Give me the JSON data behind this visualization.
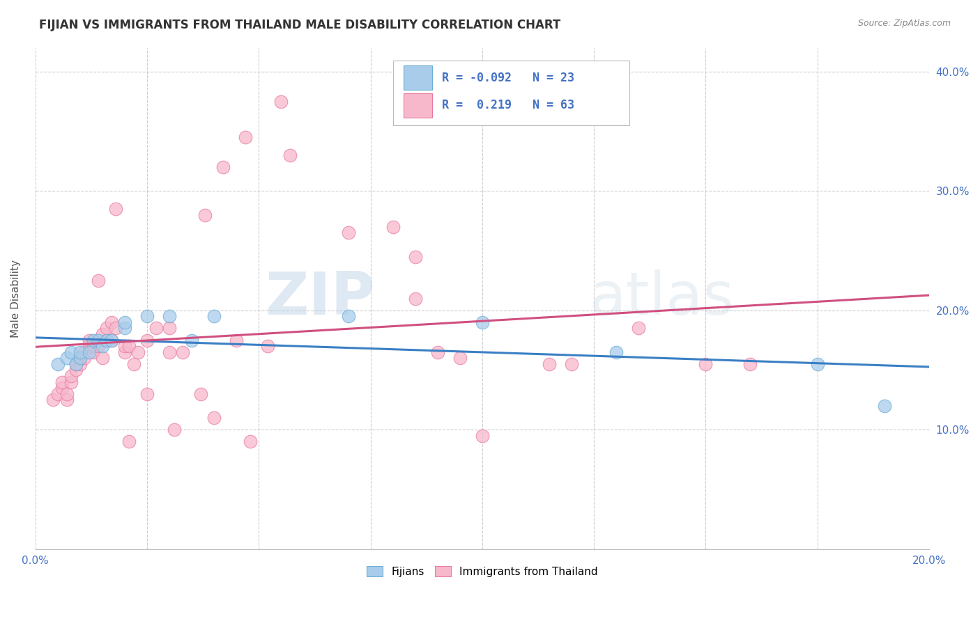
{
  "title": "FIJIAN VS IMMIGRANTS FROM THAILAND MALE DISABILITY CORRELATION CHART",
  "source": "Source: ZipAtlas.com",
  "xlabel": "",
  "ylabel": "Male Disability",
  "xlim": [
    0.0,
    0.2
  ],
  "ylim": [
    0.0,
    0.42
  ],
  "xticks": [
    0.0,
    0.025,
    0.05,
    0.075,
    0.1,
    0.125,
    0.15,
    0.175,
    0.2
  ],
  "ytick_positions": [
    0.1,
    0.2,
    0.3,
    0.4
  ],
  "ytick_labels": [
    "10.0%",
    "20.0%",
    "30.0%",
    "40.0%"
  ],
  "fijian_color": "#A8CCEA",
  "fijian_edge_color": "#6BADD6",
  "thailand_color": "#F7B8CC",
  "thailand_edge_color": "#E87AA0",
  "fijian_R": -0.092,
  "fijian_N": 23,
  "thailand_R": 0.219,
  "thailand_N": 63,
  "fijian_line_color": "#3B7FC4",
  "thailand_line_color": "#D05080",
  "watermark_color": "#C8D8EC",
  "background_color": "#FFFFFF",
  "grid_color": "#CCCCCC",
  "legend_text_color": "#4472C4",
  "axis_label_color": "#4472C4",
  "title_color": "#333333",
  "fijians_scatter": [
    [
      0.005,
      0.155
    ],
    [
      0.007,
      0.16
    ],
    [
      0.008,
      0.165
    ],
    [
      0.009,
      0.155
    ],
    [
      0.01,
      0.16
    ],
    [
      0.01,
      0.165
    ],
    [
      0.012,
      0.165
    ],
    [
      0.013,
      0.175
    ],
    [
      0.014,
      0.175
    ],
    [
      0.015,
      0.17
    ],
    [
      0.016,
      0.175
    ],
    [
      0.017,
      0.175
    ],
    [
      0.02,
      0.185
    ],
    [
      0.02,
      0.19
    ],
    [
      0.025,
      0.195
    ],
    [
      0.03,
      0.195
    ],
    [
      0.035,
      0.175
    ],
    [
      0.04,
      0.195
    ],
    [
      0.07,
      0.195
    ],
    [
      0.1,
      0.19
    ],
    [
      0.13,
      0.165
    ],
    [
      0.175,
      0.155
    ],
    [
      0.19,
      0.12
    ]
  ],
  "thailand_scatter": [
    [
      0.004,
      0.125
    ],
    [
      0.005,
      0.13
    ],
    [
      0.006,
      0.135
    ],
    [
      0.006,
      0.14
    ],
    [
      0.007,
      0.125
    ],
    [
      0.007,
      0.13
    ],
    [
      0.008,
      0.14
    ],
    [
      0.008,
      0.145
    ],
    [
      0.009,
      0.15
    ],
    [
      0.009,
      0.155
    ],
    [
      0.01,
      0.155
    ],
    [
      0.01,
      0.16
    ],
    [
      0.011,
      0.16
    ],
    [
      0.011,
      0.165
    ],
    [
      0.012,
      0.17
    ],
    [
      0.012,
      0.175
    ],
    [
      0.013,
      0.165
    ],
    [
      0.013,
      0.17
    ],
    [
      0.014,
      0.17
    ],
    [
      0.014,
      0.225
    ],
    [
      0.015,
      0.18
    ],
    [
      0.015,
      0.16
    ],
    [
      0.016,
      0.175
    ],
    [
      0.016,
      0.185
    ],
    [
      0.017,
      0.175
    ],
    [
      0.017,
      0.19
    ],
    [
      0.018,
      0.185
    ],
    [
      0.018,
      0.285
    ],
    [
      0.02,
      0.165
    ],
    [
      0.02,
      0.17
    ],
    [
      0.021,
      0.17
    ],
    [
      0.021,
      0.09
    ],
    [
      0.022,
      0.155
    ],
    [
      0.023,
      0.165
    ],
    [
      0.025,
      0.175
    ],
    [
      0.025,
      0.13
    ],
    [
      0.027,
      0.185
    ],
    [
      0.03,
      0.185
    ],
    [
      0.03,
      0.165
    ],
    [
      0.031,
      0.1
    ],
    [
      0.033,
      0.165
    ],
    [
      0.037,
      0.13
    ],
    [
      0.038,
      0.28
    ],
    [
      0.04,
      0.11
    ],
    [
      0.042,
      0.32
    ],
    [
      0.045,
      0.175
    ],
    [
      0.047,
      0.345
    ],
    [
      0.048,
      0.09
    ],
    [
      0.052,
      0.17
    ],
    [
      0.055,
      0.375
    ],
    [
      0.057,
      0.33
    ],
    [
      0.07,
      0.265
    ],
    [
      0.08,
      0.27
    ],
    [
      0.085,
      0.245
    ],
    [
      0.085,
      0.21
    ],
    [
      0.09,
      0.165
    ],
    [
      0.095,
      0.16
    ],
    [
      0.1,
      0.095
    ],
    [
      0.115,
      0.155
    ],
    [
      0.12,
      0.155
    ],
    [
      0.135,
      0.185
    ],
    [
      0.15,
      0.155
    ],
    [
      0.16,
      0.155
    ]
  ]
}
